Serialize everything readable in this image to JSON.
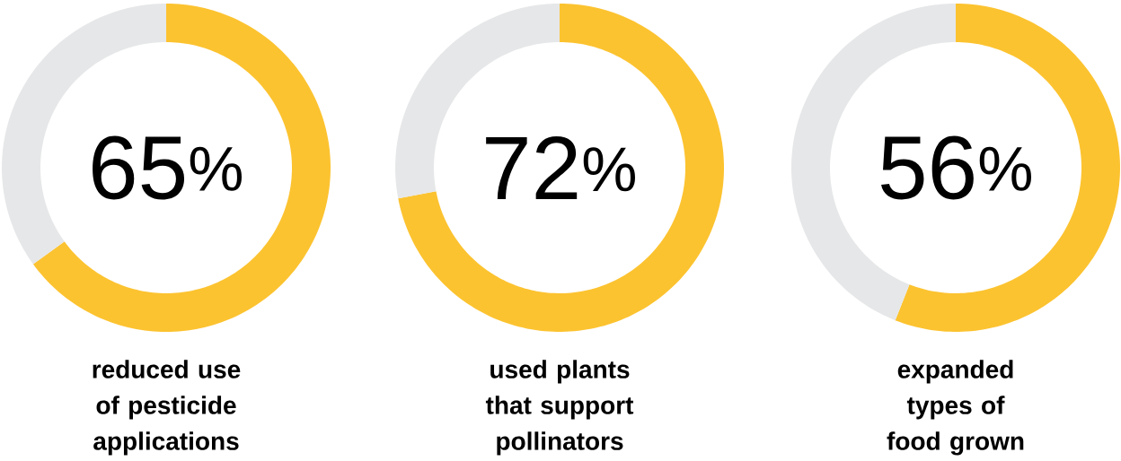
{
  "chart_data": [
    {
      "type": "donut",
      "title": "reduced use of pesticide applications",
      "categories": [
        null,
        null
      ],
      "values": [
        65,
        35
      ],
      "colors": [
        "#fcc330",
        "#e6e7e8"
      ],
      "value_labels": [
        "65$^{%}$",
        null
      ]
    },
    {
      "type": "donut",
      "title": "used plants that support pollinators",
      "categories": [
        null,
        null
      ],
      "values": [
        72,
        28
      ],
      "colors": [
        "#fcc330",
        "#e6e7e8"
      ],
      "value_labels": [
        "72$^{%}$",
        null
      ]
    },
    {
      "type": "donut",
      "title": "expanded types of food grown",
      "categories": [
        null,
        null
      ],
      "values": [
        56,
        44
      ],
      "colors": [
        "#fcc330",
        "#e6e7e8"
      ],
      "value_labels": [
        "56$^{%}$",
        null
      ]
    }
  ]
}
